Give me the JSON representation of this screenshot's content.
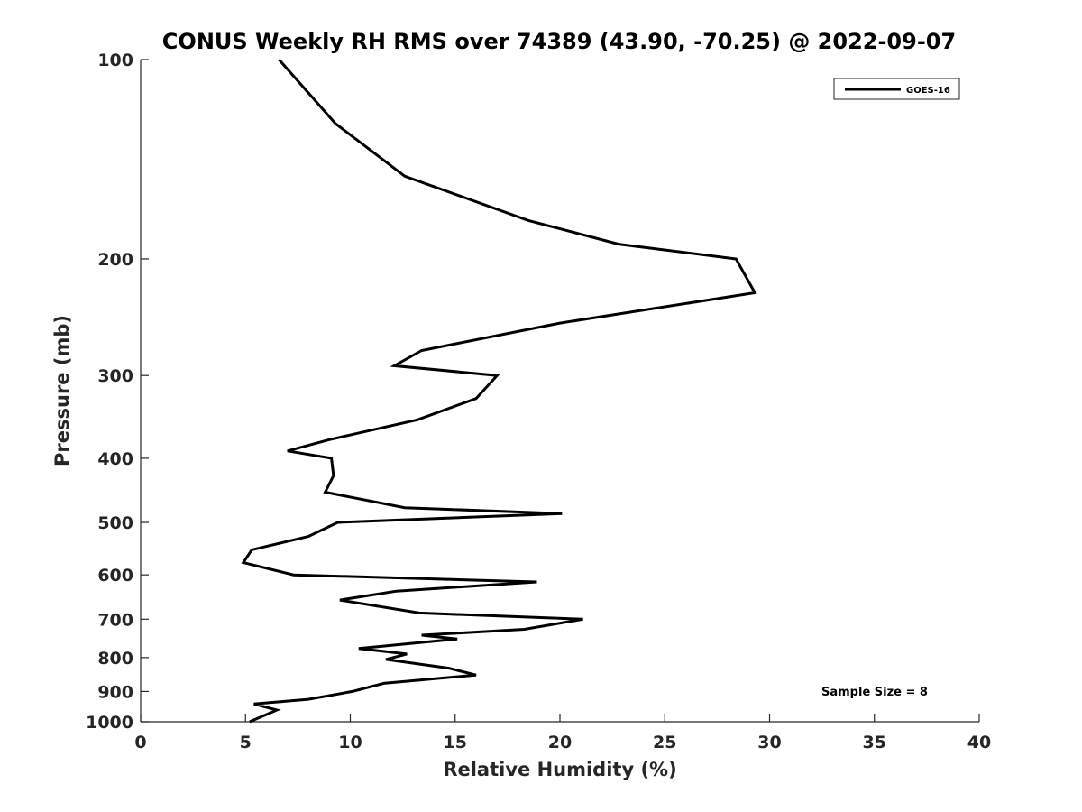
{
  "chart_data": {
    "type": "line",
    "title": "CONUS Weekly RH RMS over 74389 (43.90, -70.25) @ 2022-09-07",
    "xlabel": "Relative Humidity (%)",
    "ylabel": "Pressure (mb)",
    "xlim": [
      0,
      40
    ],
    "ylim": [
      100,
      1000
    ],
    "y_scale": "log",
    "y_reversed": true,
    "x_ticks": [
      "0",
      "5",
      "10",
      "15",
      "20",
      "25",
      "30",
      "35",
      "40"
    ],
    "y_ticks": [
      "100",
      "200",
      "300",
      "400",
      "500",
      "600",
      "700",
      "800",
      "900",
      "1000"
    ],
    "grid": false,
    "legend_position": "top-right",
    "annotation": "Sample Size = 8",
    "series": [
      {
        "name": "GOES-16",
        "color": "#000000",
        "points": [
          [
            6.6,
            100
          ],
          [
            9.3,
            125
          ],
          [
            12.6,
            150
          ],
          [
            18.5,
            175
          ],
          [
            22.8,
            190
          ],
          [
            28.4,
            200
          ],
          [
            29.3,
            225
          ],
          [
            20.0,
            250
          ],
          [
            13.4,
            275
          ],
          [
            12.1,
            290
          ],
          [
            17.0,
            300
          ],
          [
            16.0,
            325
          ],
          [
            13.2,
            350
          ],
          [
            9.0,
            375
          ],
          [
            7.0,
            390
          ],
          [
            9.1,
            400
          ],
          [
            9.2,
            425
          ],
          [
            8.8,
            450
          ],
          [
            12.6,
            475
          ],
          [
            20.1,
            485
          ],
          [
            9.4,
            500
          ],
          [
            8.0,
            525
          ],
          [
            5.3,
            550
          ],
          [
            4.9,
            575
          ],
          [
            7.3,
            600
          ],
          [
            18.9,
            615
          ],
          [
            12.2,
            635
          ],
          [
            9.5,
            655
          ],
          [
            13.3,
            685
          ],
          [
            21.1,
            700
          ],
          [
            18.3,
            725
          ],
          [
            13.4,
            740
          ],
          [
            15.1,
            750
          ],
          [
            10.4,
            775
          ],
          [
            12.7,
            790
          ],
          [
            11.7,
            805
          ],
          [
            14.7,
            830
          ],
          [
            16.0,
            850
          ],
          [
            11.6,
            875
          ],
          [
            10.1,
            900
          ],
          [
            8.0,
            925
          ],
          [
            5.4,
            940
          ],
          [
            6.5,
            960
          ],
          [
            5.2,
            1000
          ]
        ]
      }
    ]
  }
}
